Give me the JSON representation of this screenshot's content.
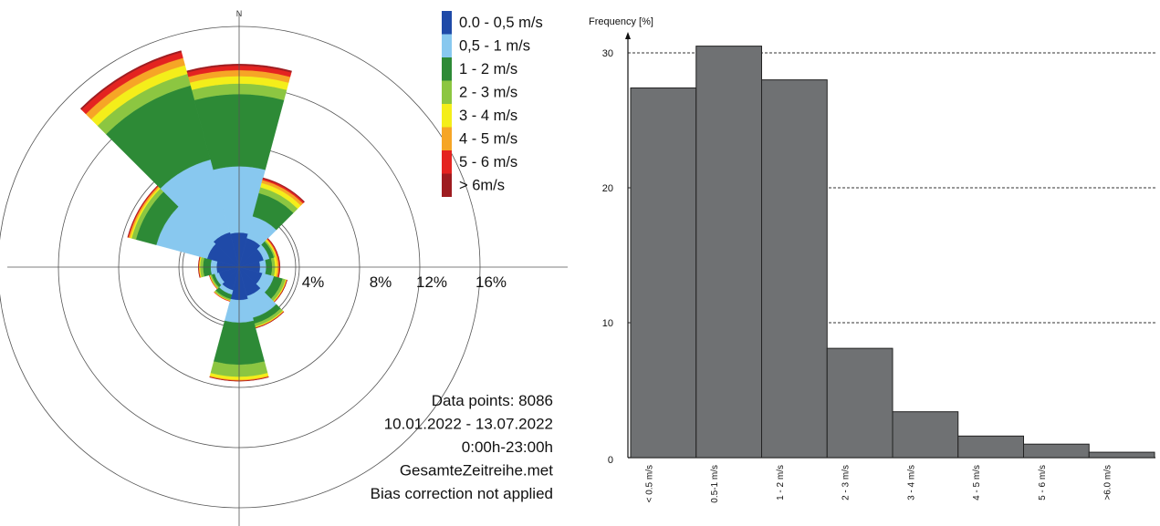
{
  "colors": {
    "background": "#ffffff",
    "axis": "#555555",
    "ring": "#555555",
    "bar_fill": "#6f7173",
    "bar_stroke": "#222222",
    "grid": "#333333"
  },
  "chart_data": [
    {
      "type": "windrose",
      "direction_labels": [
        "N"
      ],
      "ring_labels": [
        "4%",
        "8%",
        "12%",
        "16%"
      ],
      "ring_values": [
        4,
        8,
        12,
        16
      ],
      "legend_position": "top-right",
      "speed_classes": [
        {
          "label": "0.0 - 0,5 m/s",
          "color": "#1f4aa8"
        },
        {
          "label": "0,5 - 1 m/s",
          "color": "#88c8ef"
        },
        {
          "label": "1 - 2 m/s",
          "color": "#2d8a36"
        },
        {
          "label": "2 - 3 m/s",
          "color": "#8cc641"
        },
        {
          "label": "3 - 4 m/s",
          "color": "#f4ee1a"
        },
        {
          "label": "4 - 5 m/s",
          "color": "#f6a526"
        },
        {
          "label": "5 - 6 m/s",
          "color": "#e42320"
        },
        {
          "label": "> 6m/s",
          "color": "#9e1c20"
        }
      ],
      "sectors": [
        {
          "dir": 0,
          "values": [
            2.3,
            4.4,
            4.8,
            0.7,
            0.5,
            0.4,
            0.3,
            0.1
          ]
        },
        {
          "dir": 30,
          "values": [
            2.0,
            1.5,
            1.6,
            0.4,
            0.3,
            0.2,
            0.1,
            0.05
          ]
        },
        {
          "dir": 60,
          "values": [
            1.7,
            0.4,
            0.3,
            0.1,
            0.08,
            0.06,
            0.05,
            0.02
          ]
        },
        {
          "dir": 90,
          "values": [
            1.4,
            0.4,
            0.4,
            0.2,
            0.15,
            0.1,
            0.05,
            0.02
          ]
        },
        {
          "dir": 120,
          "values": [
            1.6,
            0.8,
            0.6,
            0.2,
            0.05,
            0.03,
            0.02,
            0.01
          ]
        },
        {
          "dir": 150,
          "values": [
            2.0,
            1.5,
            0.4,
            0.2,
            0.05,
            0.03,
            0.02,
            0.01
          ]
        },
        {
          "dir": 180,
          "values": [
            2.2,
            1.5,
            2.8,
            0.8,
            0.2,
            0.05,
            0.02,
            0.01
          ]
        },
        {
          "dir": 210,
          "values": [
            1.6,
            0.3,
            0.3,
            0.1,
            0.03,
            0.02,
            0.01,
            0.0
          ]
        },
        {
          "dir": 240,
          "values": [
            1.4,
            0.3,
            0.2,
            0.1,
            0.03,
            0.02,
            0.01,
            0.0
          ]
        },
        {
          "dir": 270,
          "values": [
            1.5,
            0.4,
            0.5,
            0.2,
            0.05,
            0.03,
            0.02,
            0.01
          ]
        },
        {
          "dir": 300,
          "values": [
            2.2,
            3.5,
            1.4,
            0.3,
            0.1,
            0.1,
            0.05,
            0.02
          ]
        },
        {
          "dir": 330,
          "values": [
            2.4,
            5.0,
            5.1,
            0.8,
            0.6,
            0.5,
            0.4,
            0.1
          ]
        }
      ],
      "info_lines": [
        "Data points: 8086",
        "10.01.2022 - 13.07.2022",
        "0:00h-23:00h",
        "GesamteZeitreihe.met",
        "Bias correction not applied"
      ]
    },
    {
      "type": "bar",
      "ylabel": "Frequency [%]",
      "ylim": [
        0,
        31
      ],
      "yticks": [
        0,
        10,
        20,
        30
      ],
      "grid": "dashed horizontal",
      "categories": [
        "< 0.5 m/s",
        "0.5-1 m/s",
        "1 - 2 m/s",
        "2 - 3 m/s",
        "3 - 4 m/s",
        "4 - 5 m/s",
        "5 - 6 m/s",
        ">6.0 m/s"
      ],
      "values": [
        27.4,
        30.5,
        28.0,
        8.1,
        3.4,
        1.6,
        1.0,
        0.4
      ]
    }
  ]
}
